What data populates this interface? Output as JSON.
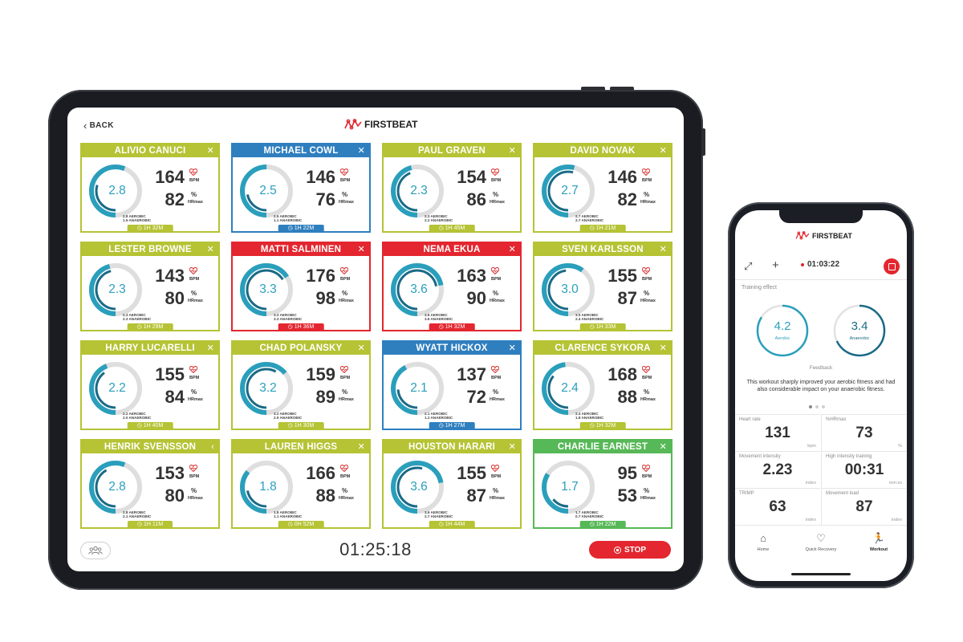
{
  "tablet": {
    "back_label": "BACK",
    "logo_text": "FIRSTBEAT",
    "timer": "01:25:18",
    "stop_label": "STOP",
    "group_icon": "group-icon"
  },
  "colors": {
    "aerobic": "#2a9fbc",
    "anaerobic": "#1a6a86",
    "green_header": "#b5c334",
    "blue_header": "#2f7fbf",
    "red_header": "#e3262f",
    "lime_header": "#57b857"
  },
  "athletes": [
    {
      "name": "ALIVIO CANUCI",
      "close": "✕",
      "te": "2.8",
      "aerobic": "2.8 AEROBIC",
      "anaerobic": "1.5 ANAEROBIC",
      "hr": "164",
      "pct": "82",
      "time": "1H 32M",
      "zone": "green"
    },
    {
      "name": "MICHAEL COWL",
      "close": "✕",
      "te": "2.5",
      "aerobic": "2.5 AEROBIC",
      "anaerobic": "1.1 ANAEROBIC",
      "hr": "146",
      "pct": "76",
      "time": "1H 22M",
      "zone": "blue"
    },
    {
      "name": "PAUL GRAVEN",
      "close": "✕",
      "te": "2.3",
      "aerobic": "2.3 AEROBIC",
      "anaerobic": "2.2 ANAEROBIC",
      "hr": "154",
      "pct": "86",
      "time": "1H 45M",
      "zone": "green"
    },
    {
      "name": "DAVID NOVAK",
      "close": "✕",
      "te": "2.7",
      "aerobic": "2.7 AEROBIC",
      "anaerobic": "2.7 ANAEROBIC",
      "hr": "146",
      "pct": "82",
      "time": "1H 21M",
      "zone": "green"
    },
    {
      "name": "LESTER BROWNE",
      "close": "✕",
      "te": "2.3",
      "aerobic": "2.3 AEROBIC",
      "anaerobic": "2.3 ANAEROBIC",
      "hr": "143",
      "pct": "80",
      "time": "1H 29M",
      "zone": "green"
    },
    {
      "name": "MATTI SALMINEN",
      "close": "✕",
      "te": "3.3",
      "aerobic": "3.3 AEROBIC",
      "anaerobic": "3.3 ANAEROBIC",
      "hr": "176",
      "pct": "98",
      "time": "1H 36M",
      "zone": "red"
    },
    {
      "name": "NEMA EKUA",
      "close": "✕",
      "te": "3.6",
      "aerobic": "3.6 AEROBIC",
      "anaerobic": "3.6 ANAEROBIC",
      "hr": "163",
      "pct": "90",
      "time": "1H 32M",
      "zone": "red"
    },
    {
      "name": "SVEN KARLSSON",
      "close": "✕",
      "te": "3.0",
      "aerobic": "3.0 AEROBIC",
      "anaerobic": "2.4 ANAEROBIC",
      "hr": "155",
      "pct": "87",
      "time": "1H 33M",
      "zone": "green"
    },
    {
      "name": "HARRY LUCARELLI",
      "close": "✕",
      "te": "2.2",
      "aerobic": "2.2 AEROBIC",
      "anaerobic": "2.0 ANAEROBIC",
      "hr": "155",
      "pct": "84",
      "time": "1H 40M",
      "zone": "green"
    },
    {
      "name": "CHAD POLANSKY",
      "close": "✕",
      "te": "3.2",
      "aerobic": "3.2 AEROBIC",
      "anaerobic": "2.9 ANAEROBIC",
      "hr": "159",
      "pct": "89",
      "time": "1H 30M",
      "zone": "green"
    },
    {
      "name": "WYATT HICKOX",
      "close": "✕",
      "te": "2.1",
      "aerobic": "2.1 AEROBIC",
      "anaerobic": "1.2 ANAEROBIC",
      "hr": "137",
      "pct": "72",
      "time": "1H 27M",
      "zone": "blue"
    },
    {
      "name": "CLARENCE SYKORA",
      "close": "✕",
      "te": "2.4",
      "aerobic": "2.4 AEROBIC",
      "anaerobic": "1.8 ANAEROBIC",
      "hr": "168",
      "pct": "88",
      "time": "1H 32M",
      "zone": "green"
    },
    {
      "name": "HENRIK SVENSSON",
      "close": "‹",
      "te": "2.8",
      "aerobic": "2.8 AEROBIC",
      "anaerobic": "2.1 ANAEROBIC",
      "hr": "153",
      "pct": "80",
      "time": "1H 11M",
      "zone": "green"
    },
    {
      "name": "LAUREN HIGGS",
      "close": "✕",
      "te": "1.8",
      "aerobic": "1.8 AEROBIC",
      "anaerobic": "1.1 ANAEROBIC",
      "hr": "166",
      "pct": "88",
      "time": "0H 52M",
      "zone": "green"
    },
    {
      "name": "HOUSTON HARARI",
      "close": "✕",
      "te": "3.6",
      "aerobic": "3.6 AEROBIC",
      "anaerobic": "2.7 ANAEROBIC",
      "hr": "155",
      "pct": "87",
      "time": "1H 44M",
      "zone": "green"
    },
    {
      "name": "CHARLIE EARNEST",
      "close": "✕",
      "te": "1.7",
      "aerobic": "1.7 AEROBIC",
      "anaerobic": "0.7 ANAEROBIC",
      "hr": "95",
      "pct": "53",
      "time": "1H 22M",
      "zone": "lime"
    }
  ],
  "card_labels": {
    "bpm": "BPM",
    "pct_symbol": "%",
    "hrmax": "HRmax"
  },
  "phone": {
    "logo_text": "FIRSTBEAT",
    "expand_icon": "⤢",
    "add_icon": "+",
    "elapsed": "01:03:22",
    "training_effect_label": "Training effect",
    "aerobic_value": "4.2",
    "aerobic_label": "Aerobic",
    "anaerobic_value": "3.4",
    "anaerobic_label": "Anaerobic",
    "feedback_heading": "Feedback",
    "feedback_text": "This workout sharply improved your aerobic fitness and had also considerable impact on your anaerobic fitness.",
    "metrics": [
      {
        "label": "Heart rate",
        "value": "131",
        "unit": "bpm"
      },
      {
        "label": "%HRmax",
        "value": "73",
        "unit": "%"
      },
      {
        "label": "Movement intensity",
        "value": "2.23",
        "unit": "index"
      },
      {
        "label": "High intensity training",
        "value": "00:31",
        "unit": "mm:ss"
      },
      {
        "label": "TRIMP",
        "value": "63",
        "unit": "index"
      },
      {
        "label": "Movement load",
        "value": "87",
        "unit": "index"
      }
    ],
    "nav": [
      {
        "label": "Home",
        "icon": "⌂"
      },
      {
        "label": "Quick Recovery",
        "icon": "♡"
      },
      {
        "label": "Workout",
        "icon": "🏃"
      }
    ]
  }
}
